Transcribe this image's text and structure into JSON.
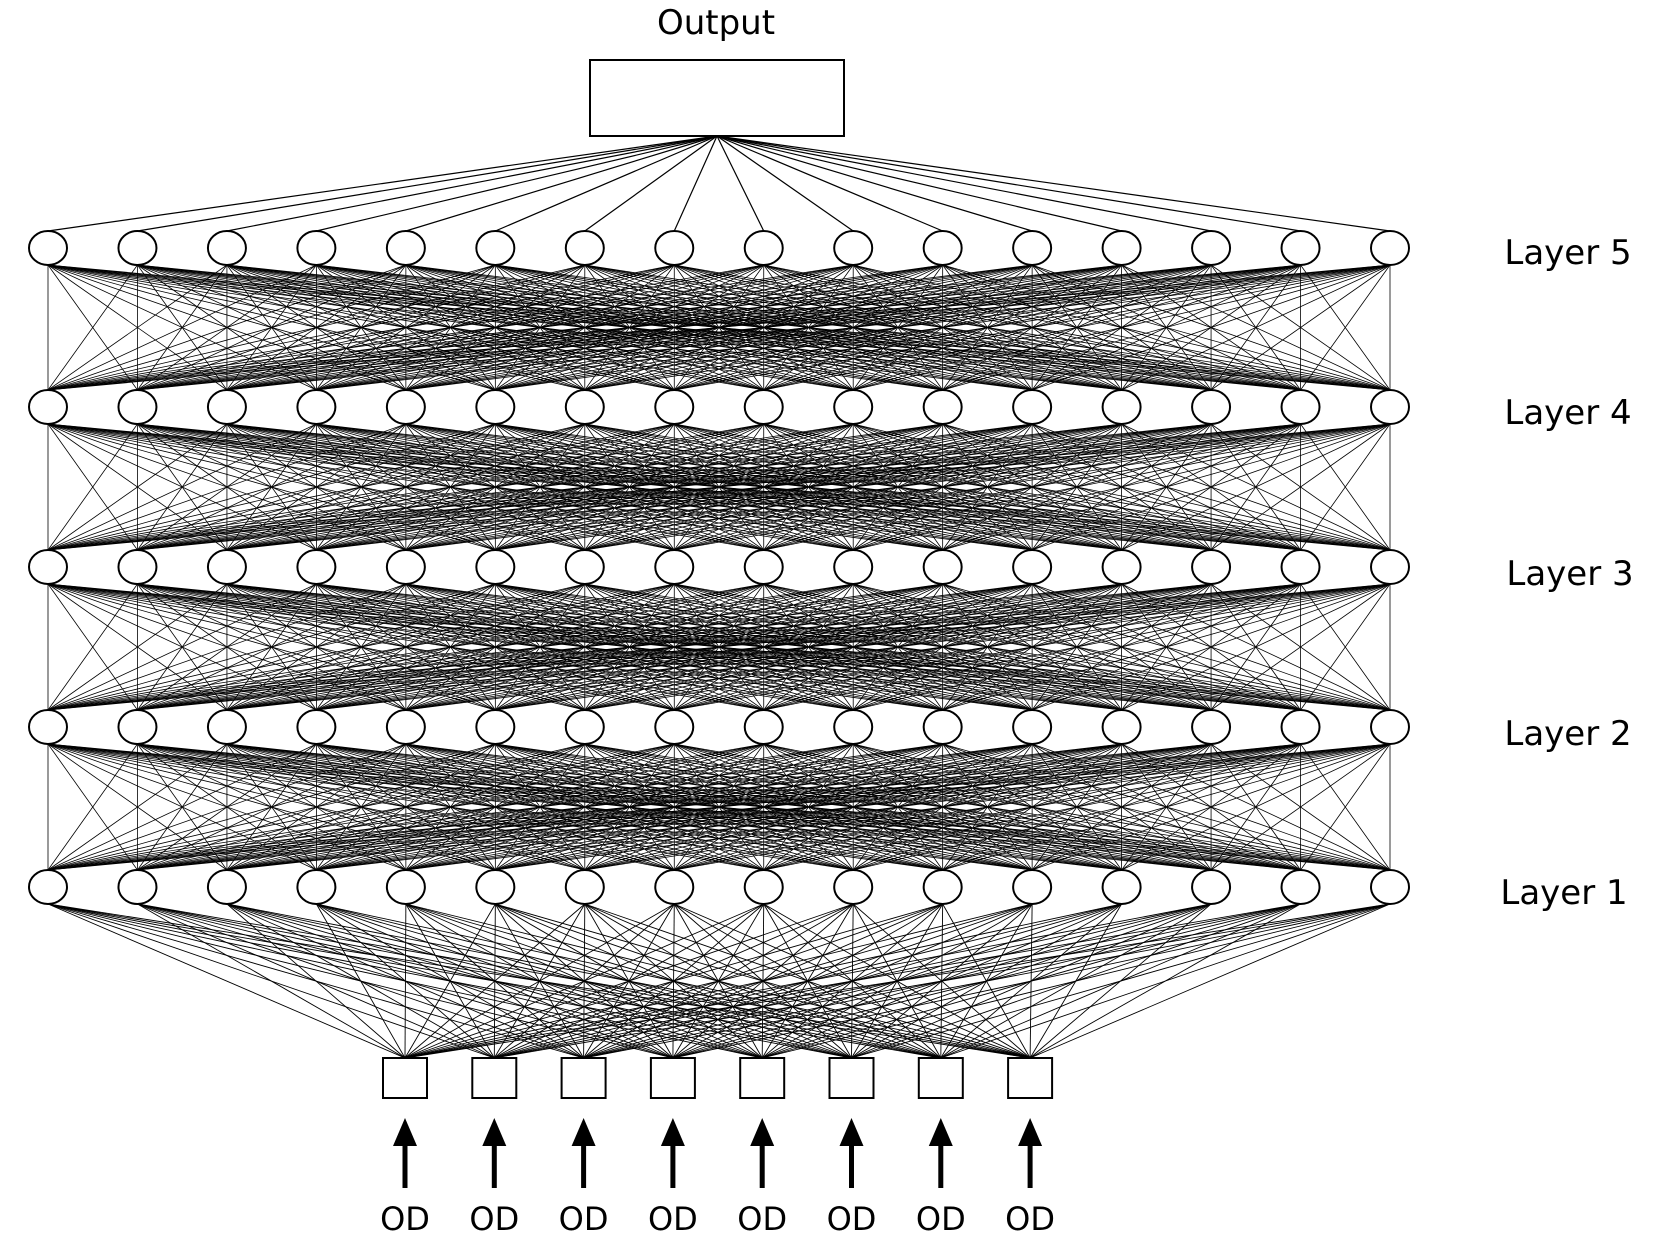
{
  "diagram": {
    "output_label": "Output",
    "layers": [
      {
        "label": "Layer 1",
        "neurons": 16
      },
      {
        "label": "Layer 2",
        "neurons": 16
      },
      {
        "label": "Layer 3",
        "neurons": 16
      },
      {
        "label": "Layer 4",
        "neurons": 16
      },
      {
        "label": "Layer 5",
        "neurons": 16
      }
    ],
    "inputs": {
      "count": 8,
      "labels": [
        "OD",
        "OD",
        "OD",
        "OD",
        "OD",
        "OD",
        "OD",
        "OD"
      ]
    },
    "colors": {
      "line": "#000000",
      "node_fill": "#ffffff",
      "background": "#ffffff"
    }
  }
}
